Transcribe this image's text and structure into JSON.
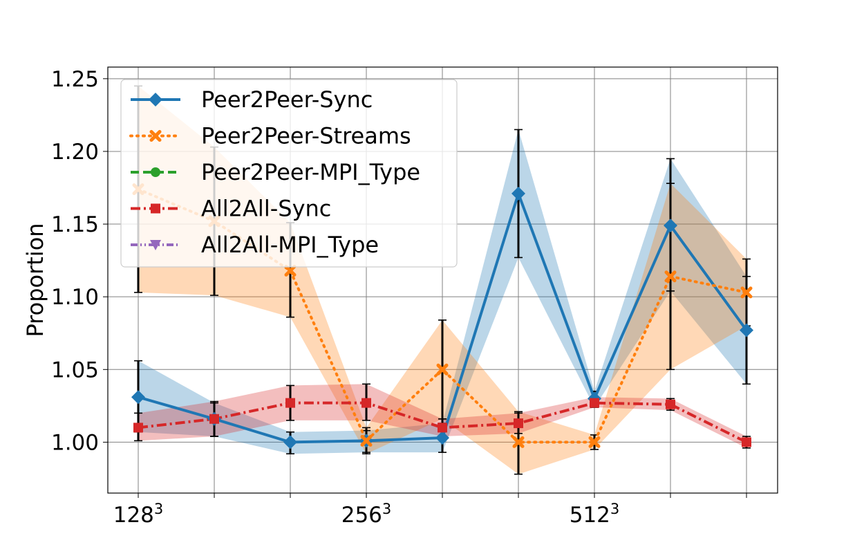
{
  "chart_data": {
    "type": "line",
    "title": "",
    "xlabel": "",
    "ylabel": "Proportion",
    "x_tick_labels": [
      {
        "base": "128",
        "exp": "3",
        "index": 0
      },
      {
        "base": "256",
        "exp": "3",
        "index": 3
      },
      {
        "base": "512",
        "exp": "3",
        "index": 6
      }
    ],
    "x_count": 9,
    "ylim": [
      0.965,
      1.258
    ],
    "y_ticks": [
      "1.00",
      "1.05",
      "1.10",
      "1.15",
      "1.20",
      "1.25"
    ],
    "grid": true,
    "legend_position": "top-left",
    "series": [
      {
        "name": "Peer2Peer-Sync",
        "color": "#1f77b4",
        "linestyle": "solid",
        "marker": "diamond",
        "values": [
          1.031,
          1.016,
          1.0,
          1.001,
          1.003,
          1.171,
          1.03,
          1.149,
          1.077
        ],
        "band_lower": [
          1.007,
          1.004,
          0.992,
          0.993,
          0.993,
          1.127,
          1.024,
          1.104,
          1.04
        ],
        "band_upper": [
          1.056,
          1.027,
          1.007,
          1.008,
          1.013,
          1.215,
          1.035,
          1.195,
          1.114
        ],
        "err_lower": [
          1.007,
          1.004,
          0.992,
          0.993,
          0.993,
          1.127,
          1.024,
          1.104,
          1.04
        ],
        "err_upper": [
          1.056,
          1.027,
          1.007,
          1.008,
          1.013,
          1.215,
          1.035,
          1.195,
          1.114
        ]
      },
      {
        "name": "Peer2Peer-Streams",
        "color": "#ff7f0e",
        "linestyle": "dotted",
        "marker": "x",
        "values": [
          1.174,
          1.152,
          1.118,
          1.001,
          1.05,
          1.0,
          1.0,
          1.114,
          1.103
        ],
        "band_lower": [
          1.103,
          1.101,
          1.086,
          0.992,
          1.016,
          0.978,
          0.995,
          1.05,
          1.08
        ],
        "band_upper": [
          1.245,
          1.203,
          1.151,
          1.01,
          1.084,
          1.021,
          1.005,
          1.178,
          1.126
        ],
        "err_lower": [
          1.103,
          1.101,
          1.086,
          0.992,
          1.016,
          0.978,
          0.995,
          1.05,
          1.08
        ],
        "err_upper": [
          1.245,
          1.203,
          1.151,
          1.01,
          1.084,
          1.021,
          1.005,
          1.178,
          1.126
        ]
      },
      {
        "name": "Peer2Peer-MPI_Type",
        "color": "#2ca02c",
        "linestyle": "dashed",
        "marker": "circle",
        "values": [],
        "band_lower": [],
        "band_upper": [],
        "err_lower": [],
        "err_upper": []
      },
      {
        "name": "All2All-Sync",
        "color": "#d62728",
        "linestyle": "dashdot",
        "marker": "square",
        "values": [
          1.01,
          1.016,
          1.027,
          1.027,
          1.01,
          1.013,
          1.027,
          1.026,
          1.0
        ],
        "band_lower": [
          1.001,
          1.004,
          1.015,
          1.015,
          1.004,
          1.006,
          1.024,
          1.022,
          0.996
        ],
        "band_upper": [
          1.02,
          1.028,
          1.039,
          1.04,
          1.016,
          1.02,
          1.031,
          1.03,
          1.004
        ],
        "err_lower": [
          1.001,
          1.004,
          1.015,
          1.015,
          1.004,
          1.006,
          1.024,
          1.022,
          0.996
        ],
        "err_upper": [
          1.02,
          1.028,
          1.039,
          1.04,
          1.016,
          1.02,
          1.031,
          1.03,
          1.004
        ]
      },
      {
        "name": "All2All-MPI_Type",
        "color": "#9467bd",
        "linestyle": "dashdotdot",
        "marker": "triangle-down",
        "values": [],
        "band_lower": [],
        "band_upper": [],
        "err_lower": [],
        "err_upper": []
      }
    ]
  }
}
